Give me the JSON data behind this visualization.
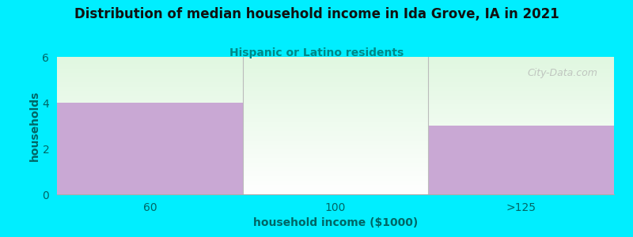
{
  "title": "Distribution of median household income in Ida Grove, IA in 2021",
  "subtitle": "Hispanic or Latino residents",
  "xlabel": "household income ($1000)",
  "ylabel": "households",
  "categories": [
    "60",
    "100",
    ">125"
  ],
  "values": [
    4,
    0,
    3
  ],
  "bar_color": "#c9a8d4",
  "background_outer": "#00eeff",
  "background_inner_top": "#e8f5e8",
  "background_inner_bottom": "#f8fff8",
  "title_color": "#111111",
  "subtitle_color": "#008888",
  "axis_label_color": "#006666",
  "tick_color": "#006666",
  "ylim": [
    0,
    6
  ],
  "yticks": [
    0,
    2,
    4,
    6
  ],
  "divider_color": "#bbbbbb",
  "watermark": "City-Data.com",
  "watermark_color": "#b0b0b0"
}
